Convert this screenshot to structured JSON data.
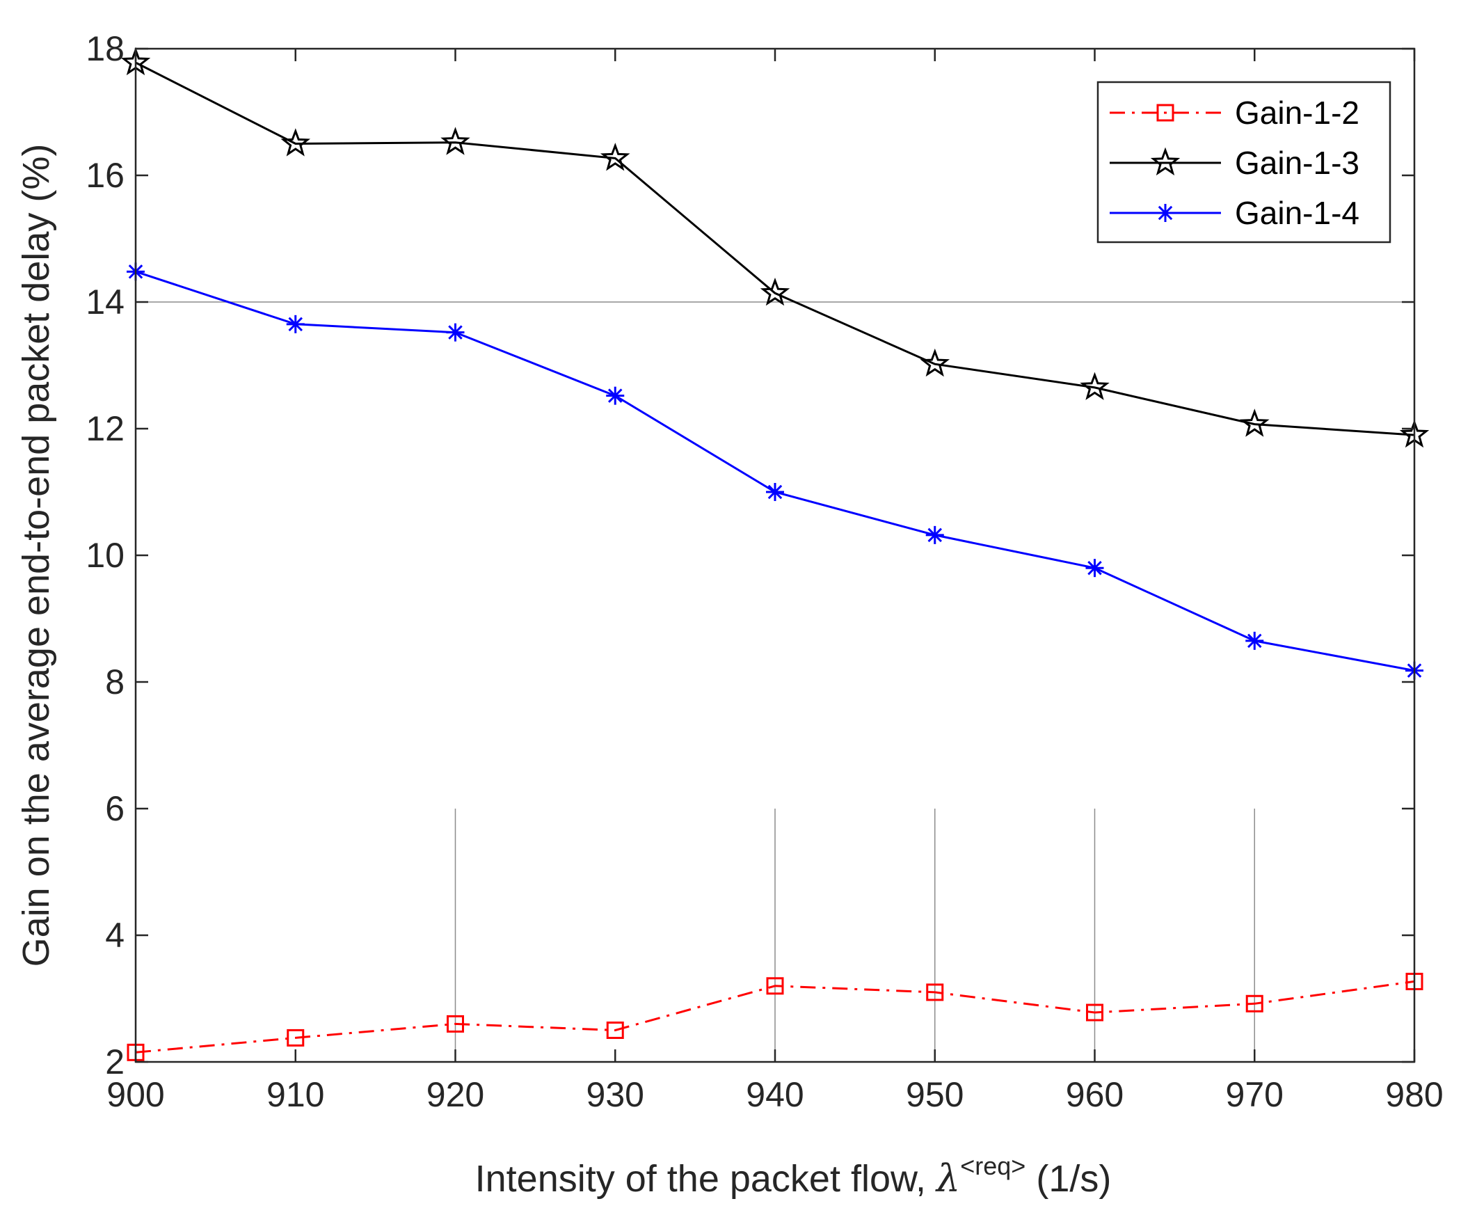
{
  "chart_data": {
    "type": "line",
    "xlabel_main": "Intensity of the packet flow, ",
    "xlabel_symbol": "λ",
    "xlabel_sup": "<req>",
    "xlabel_unit": " (1/s)",
    "ylabel": "Gain on the average end-to-end packet delay (%)",
    "x": [
      900,
      910,
      920,
      930,
      940,
      950,
      960,
      970,
      980
    ],
    "xlim": [
      900,
      980
    ],
    "ylim": [
      2,
      18
    ],
    "xticks": [
      900,
      910,
      920,
      930,
      940,
      950,
      960,
      970,
      980
    ],
    "yticks": [
      2,
      4,
      6,
      8,
      10,
      12,
      14,
      16,
      18
    ],
    "legend_position": "top-right",
    "series": [
      {
        "name": "Gain-1-2",
        "color": "#ff0000",
        "line": "dash-dot",
        "marker": "square",
        "values": [
          2.15,
          2.38,
          2.6,
          2.5,
          3.2,
          3.1,
          2.78,
          2.92,
          3.27
        ]
      },
      {
        "name": "Gain-1-3",
        "color": "#000000",
        "line": "solid",
        "marker": "star",
        "values": [
          17.78,
          16.5,
          16.52,
          16.27,
          14.14,
          13.02,
          12.65,
          12.07,
          11.9
        ]
      },
      {
        "name": "Gain-1-4",
        "color": "#0000ff",
        "line": "solid",
        "marker": "asterisk",
        "values": [
          14.48,
          13.65,
          13.52,
          12.52,
          11.0,
          10.32,
          9.8,
          8.65,
          8.18
        ]
      }
    ]
  }
}
